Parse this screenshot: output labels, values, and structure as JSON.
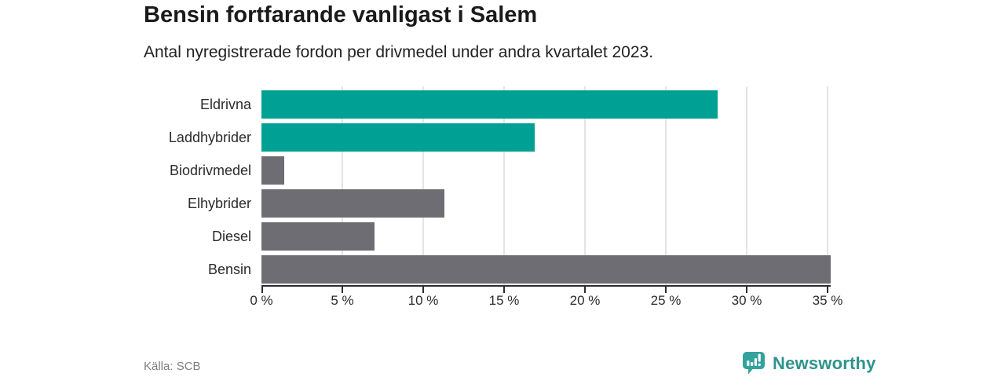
{
  "header": {
    "title": "Bensin fortfarande vanligast i Salem",
    "subtitle": "Antal nyregistrerade fordon per drivmedel under andra kvartalet 2023."
  },
  "chart_data": {
    "type": "bar",
    "orientation": "horizontal",
    "title": "Bensin fortfarande vanligast i Salem",
    "subtitle": "Antal nyregistrerade fordon per drivmedel under andra kvartalet 2023.",
    "categories": [
      "Eldrivna",
      "Laddhybrider",
      "Biodrivmedel",
      "Elhybrider",
      "Diesel",
      "Bensin"
    ],
    "values": [
      28.2,
      16.9,
      1.4,
      11.3,
      7.0,
      35.2
    ],
    "unit": "%",
    "bar_colors": [
      "#00a194",
      "#00a194",
      "#6e6d73",
      "#6e6d73",
      "#6e6d73",
      "#6e6d73"
    ],
    "xlabel": "",
    "ylabel": "",
    "xlim": [
      0,
      35
    ],
    "tick_values": [
      0,
      5,
      10,
      15,
      20,
      25,
      30,
      35
    ],
    "tick_labels": [
      "0 %",
      "5 %",
      "10 %",
      "15 %",
      "20 %",
      "25 %",
      "30 %",
      "35 %"
    ],
    "gridline_values": [
      5,
      10,
      15,
      20,
      25,
      30,
      35
    ],
    "grid": true,
    "legend": false
  },
  "footer": {
    "source": "Källa: SCB",
    "brand": "Newsworthy"
  },
  "colors": {
    "accent_teal": "#00a194",
    "muted_gray": "#6e6d73",
    "gridline": "#e4e4e4",
    "axis": "#2d2d2d",
    "brand_teal": "#2e938e",
    "brand_icon_teal": "#33a29c"
  }
}
